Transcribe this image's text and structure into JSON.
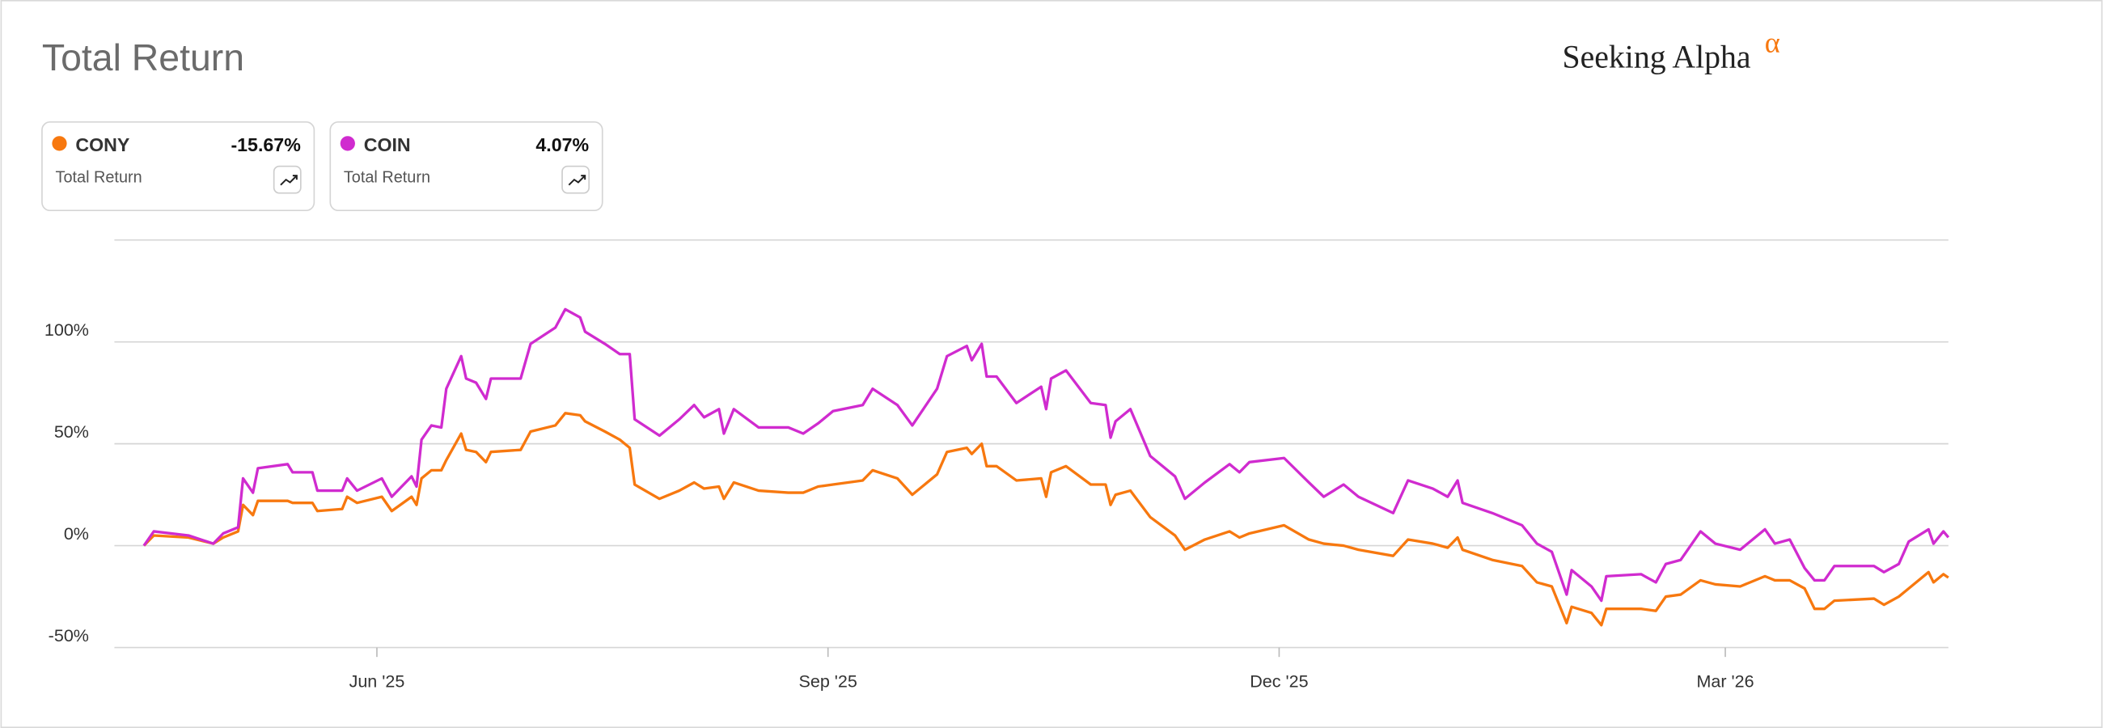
{
  "title": "Total Return",
  "brand": {
    "name": "Seeking Alpha",
    "mark": "α"
  },
  "card_label": "Total Return",
  "chart_data": {
    "type": "line",
    "x": [
      0,
      2,
      9,
      14,
      16,
      19,
      20,
      22,
      23,
      29,
      30,
      34,
      35,
      40,
      41,
      43,
      48,
      50,
      54,
      55,
      56,
      58,
      60,
      61,
      64,
      65,
      67,
      69,
      70,
      76,
      78,
      83,
      85,
      88,
      89,
      93,
      96,
      98,
      99,
      104,
      108,
      111,
      113,
      116,
      117,
      119,
      124,
      130,
      133,
      136,
      139,
      145,
      147,
      152,
      155,
      160,
      162,
      166,
      167,
      169,
      170,
      172,
      176,
      181,
      182,
      183,
      186,
      191,
      194,
      195,
      196,
      199,
      203,
      208,
      210,
      214,
      219,
      221,
      223,
      230,
      235,
      238,
      242,
      245,
      252,
      255,
      260,
      263,
      265,
      266,
      272,
      278,
      281,
      284,
      287,
      288,
      292,
      294,
      295,
      302,
      305,
      307,
      310,
      314,
      317,
      322,
      327,
      329,
      332,
      335,
      337,
      339,
      341,
      349,
      351,
      354,
      356,
      360,
      361,
      363,
      364
    ],
    "series": [
      {
        "name": "CONY",
        "color": "#f7780f",
        "last_label": "-15.67%",
        "values": [
          0,
          5,
          4,
          1,
          4,
          7,
          20,
          15,
          22,
          22,
          21,
          21,
          17,
          18,
          24,
          21,
          24,
          17,
          24,
          20,
          33,
          37,
          37,
          42,
          55,
          47,
          46,
          41,
          46,
          47,
          56,
          59,
          65,
          64,
          61,
          56,
          52,
          48,
          30,
          23,
          27,
          31,
          28,
          29,
          23,
          31,
          27,
          26,
          26,
          29,
          30,
          32,
          37,
          33,
          25,
          35,
          46,
          48,
          45,
          50,
          39,
          39,
          32,
          33,
          24,
          36,
          39,
          30,
          30,
          20,
          25,
          27,
          14,
          5,
          -2,
          3,
          7,
          4,
          6,
          10,
          3,
          1,
          0,
          -2,
          -5,
          3,
          1,
          -1,
          4,
          -2,
          -7,
          -10,
          -18,
          -20,
          -38,
          -30,
          -33,
          -39,
          -31,
          -31,
          -32,
          -25,
          -24,
          -17,
          -19,
          -20,
          -15,
          -17,
          -17,
          -21,
          -31,
          -31,
          -27,
          -26,
          -29,
          -25,
          -21,
          -13,
          -18,
          -14,
          -15.67
        ]
      },
      {
        "name": "COIN",
        "color": "#d02bcf",
        "last_label": "4.07%",
        "values": [
          0,
          7,
          5,
          1,
          6,
          9,
          33,
          26,
          38,
          40,
          36,
          36,
          27,
          27,
          33,
          27,
          33,
          24,
          34,
          29,
          52,
          59,
          58,
          77,
          93,
          82,
          80,
          72,
          82,
          82,
          99,
          107,
          116,
          112,
          105,
          99,
          94,
          94,
          62,
          54,
          62,
          69,
          63,
          67,
          55,
          67,
          58,
          58,
          55,
          60,
          66,
          69,
          77,
          69,
          59,
          77,
          93,
          98,
          91,
          99,
          83,
          83,
          70,
          78,
          67,
          82,
          86,
          70,
          69,
          53,
          61,
          67,
          44,
          34,
          23,
          31,
          40,
          36,
          41,
          43,
          31,
          24,
          30,
          24,
          16,
          32,
          28,
          24,
          32,
          21,
          16,
          10,
          1,
          -3,
          -24,
          -12,
          -20,
          -27,
          -15,
          -14,
          -18,
          -9,
          -7,
          7,
          1,
          -2,
          8,
          1,
          3,
          -11,
          -17,
          -17,
          -10,
          -10,
          -13,
          -9,
          2,
          8,
          1,
          7,
          4.07
        ]
      }
    ],
    "xlim": [
      0,
      364
    ],
    "xticks": [
      {
        "value": 47,
        "label": "Jun '25"
      },
      {
        "value": 138,
        "label": "Sep '25"
      },
      {
        "value": 229,
        "label": "Dec '25"
      },
      {
        "value": 319,
        "label": "Mar '26"
      }
    ],
    "ylim": [
      -50,
      150
    ],
    "yticks": [
      {
        "value": -50,
        "label": "-50%"
      },
      {
        "value": 0,
        "label": "0%"
      },
      {
        "value": 50,
        "label": "50%"
      },
      {
        "value": 100,
        "label": "100%"
      }
    ],
    "grid": true
  }
}
